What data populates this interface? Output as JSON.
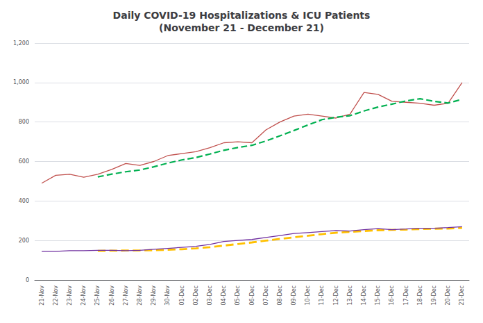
{
  "chart_data": {
    "type": "line",
    "title": "Daily COVID-19 Hospitalizations & ICU Patients\n(November 21 - December 21)",
    "categories": [
      "21-Nov",
      "22-Nov",
      "23-Nov",
      "24-Nov",
      "25-Nov",
      "26-Nov",
      "27-Nov",
      "28-Nov",
      "29-Nov",
      "30-Nov",
      "01-Dec",
      "02-Dec",
      "03-Dec",
      "04-Dec",
      "05-Dec",
      "06-Dec",
      "07-Dec",
      "08-Dec",
      "09-Dec",
      "10-Dec",
      "11-Dec",
      "12-Dec",
      "13-Dec",
      "14-Dec",
      "15-Dec",
      "16-Dec",
      "17-Dec",
      "18-Dec",
      "19-Dec",
      "20-Dec",
      "21-Dec"
    ],
    "series": [
      {
        "color": "#c0504d",
        "line_style": "solid",
        "values": [
          490,
          530,
          535,
          520,
          535,
          560,
          590,
          580,
          600,
          630,
          640,
          650,
          670,
          695,
          700,
          695,
          760,
          800,
          830,
          840,
          830,
          820,
          840,
          950,
          940,
          905,
          900,
          895,
          885,
          895,
          1000
        ]
      },
      {
        "color": "#00b050",
        "line_style": "dashed",
        "values": [
          null,
          null,
          null,
          null,
          522,
          536,
          548,
          557,
          573,
          592,
          608,
          620,
          638,
          657,
          671,
          682,
          704,
          730,
          757,
          785,
          812,
          824,
          832,
          856,
          876,
          891,
          907,
          918,
          905,
          896,
          915
        ]
      },
      {
        "color": "#7030a0",
        "line_style": "solid",
        "values": [
          145,
          145,
          148,
          148,
          150,
          150,
          148,
          150,
          155,
          160,
          165,
          170,
          180,
          195,
          200,
          205,
          215,
          225,
          235,
          240,
          245,
          250,
          248,
          255,
          260,
          255,
          258,
          262,
          262,
          265,
          270
        ]
      },
      {
        "color": "#ffc000",
        "line_style": "dashed",
        "values": [
          null,
          null,
          null,
          null,
          147.2,
          148.2,
          148.8,
          149.2,
          150.6,
          152.6,
          155.6,
          160,
          166,
          174,
          182,
          190,
          199,
          208,
          216,
          224,
          232,
          239,
          243.6,
          247.6,
          251.6,
          253.6,
          255.2,
          258,
          259.4,
          260.4,
          263.4
        ]
      }
    ],
    "ylim": [
      0,
      1200
    ],
    "yticks": [
      0,
      200,
      400,
      600,
      800,
      1000,
      1200
    ],
    "grid": true
  }
}
